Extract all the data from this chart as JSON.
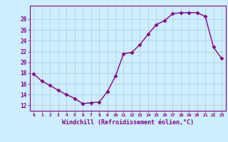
{
  "x": [
    0,
    1,
    2,
    3,
    4,
    5,
    6,
    7,
    8,
    9,
    10,
    11,
    12,
    13,
    14,
    15,
    16,
    17,
    18,
    19,
    20,
    21,
    22,
    23
  ],
  "y": [
    17.8,
    16.5,
    15.7,
    14.8,
    14.0,
    13.3,
    12.3,
    12.5,
    12.6,
    14.5,
    17.4,
    21.6,
    21.8,
    23.3,
    25.2,
    27.0,
    27.7,
    29.0,
    29.2,
    29.2,
    29.2,
    28.5,
    22.8,
    20.7
  ],
  "line_color": "#880088",
  "marker": "D",
  "marker_size": 2.5,
  "bg_color": "#cceeff",
  "grid_color": "#aacccc",
  "xlabel": "Windchill (Refroidissement éolien,°C)",
  "xlabel_color": "#880088",
  "tick_color": "#880088",
  "ylabel_ticks": [
    12,
    14,
    16,
    18,
    20,
    22,
    24,
    26,
    28
  ],
  "ylim": [
    11.0,
    30.5
  ],
  "xlim": [
    -0.5,
    23.5
  ]
}
